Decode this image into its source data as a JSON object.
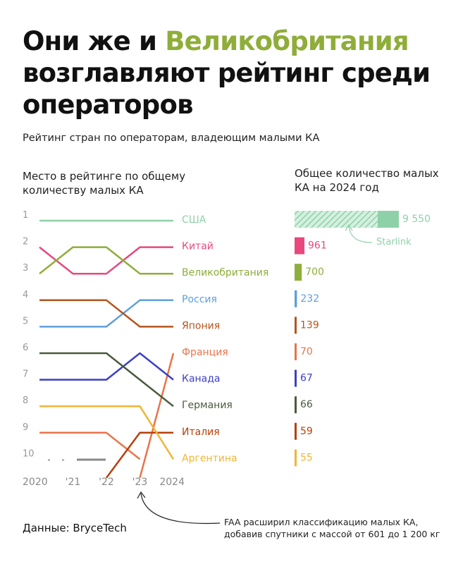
{
  "header": {
    "title_part1": "Они же и ",
    "title_accent": "Великобритания",
    "title_part2": "возглавляют рейтинг среди операторов",
    "subtitle": "Рейтинг стран по операторам, владеющим малыми КА"
  },
  "left_heading": "Место в рейтинге по общему количеству малых КА",
  "right_heading": "Общее количество малых КА на 2024 год",
  "source": "Данные: BryceTech",
  "note": "FAA расширил классификацию малых КА, добавив спутники с массой от 601 до 1 200 кг",
  "starlink_label": "Starlink",
  "chart_data": {
    "type": "line",
    "x": [
      "2020",
      "'21",
      "'22",
      "'23",
      "2024"
    ],
    "rank_ticks": [
      "1",
      "2",
      "3",
      "4",
      "5",
      "6",
      "7",
      "8",
      "9",
      "10"
    ],
    "series": [
      {
        "name": "США",
        "color": "#8ed1a8",
        "ranks": [
          1,
          1,
          1,
          1,
          1
        ],
        "value": 9550,
        "value_label": "9 550",
        "starlink": true
      },
      {
        "name": "Китай",
        "color": "#e8487e",
        "ranks": [
          2,
          3,
          3,
          2,
          2
        ],
        "value": 961,
        "value_label": "961"
      },
      {
        "name": "Великобритания",
        "color": "#8fad3a",
        "ranks": [
          3,
          2,
          2,
          3,
          3
        ],
        "value": 700,
        "value_label": "700"
      },
      {
        "name": "Россия",
        "color": "#5da0dc",
        "ranks": [
          5,
          5,
          5,
          4,
          4
        ],
        "value": 232,
        "value_label": "232"
      },
      {
        "name": "Япония",
        "color": "#b5541d",
        "ranks": [
          4,
          4,
          4,
          5,
          5
        ],
        "value": 139,
        "value_label": "139"
      },
      {
        "name": "Франция",
        "color": "#e8744a",
        "ranks": [
          null,
          null,
          null,
          10.7,
          6
        ],
        "value": 70,
        "value_label": "70"
      },
      {
        "name": "Канада",
        "color": "#3b3fc7",
        "ranks": [
          7,
          7,
          7,
          6,
          7
        ],
        "value": 67,
        "value_label": "67"
      },
      {
        "name": "Германия",
        "color": "#4a5a3c",
        "ranks": [
          6,
          6,
          6,
          7,
          8
        ],
        "value": 66,
        "value_label": "66"
      },
      {
        "name": "Италия",
        "color": "#b5400c",
        "ranks": [
          null,
          null,
          10.7,
          9,
          9
        ],
        "value": 59,
        "value_label": "59"
      },
      {
        "name": "Аргентина",
        "color": "#f2b535",
        "ranks": [
          8,
          8,
          8,
          8,
          10
        ],
        "value": 55,
        "value_label": "55"
      }
    ],
    "extra_segments": [
      {
        "color": "#e8744a",
        "ranks": [
          9,
          9,
          9,
          10,
          null
        ]
      }
    ]
  }
}
